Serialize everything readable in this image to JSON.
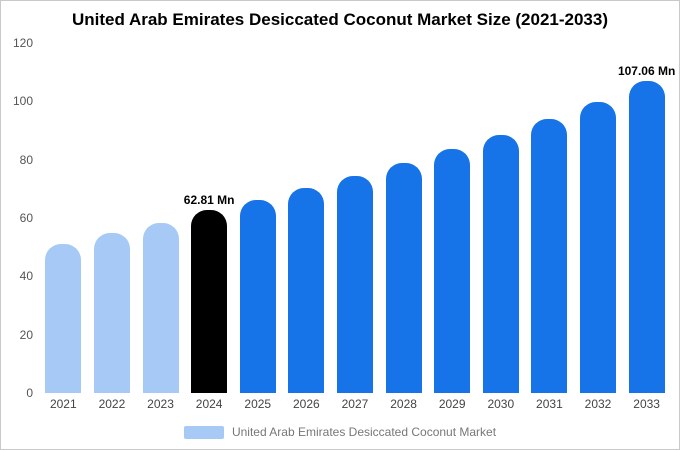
{
  "title": "United Arab Emirates Desiccated Coconut Market Size (2021-2033)",
  "legend": {
    "label": "United Arab Emirates Desiccated Coconut Market",
    "swatch_color": "#a6c9f6"
  },
  "colors": {
    "light_blue": "#a6c9f6",
    "highlight_black": "#000000",
    "primary_blue": "#1673e8"
  },
  "chart_data": {
    "type": "bar",
    "title": "United Arab Emirates Desiccated Coconut Market Size (2021-2033)",
    "xlabel": "",
    "ylabel": "",
    "categories": [
      "2021",
      "2022",
      "2023",
      "2024",
      "2025",
      "2026",
      "2027",
      "2028",
      "2029",
      "2030",
      "2031",
      "2032",
      "2033"
    ],
    "values": [
      51.2,
      54.8,
      58.3,
      62.81,
      66.3,
      70.2,
      74.4,
      78.9,
      83.6,
      88.6,
      93.9,
      99.8,
      107.06
    ],
    "bar_colors": [
      "#a6c9f6",
      "#a6c9f6",
      "#a6c9f6",
      "#000000",
      "#1673e8",
      "#1673e8",
      "#1673e8",
      "#1673e8",
      "#1673e8",
      "#1673e8",
      "#1673e8",
      "#1673e8",
      "#1673e8"
    ],
    "annotations": [
      {
        "index": 3,
        "text": "62.81 Mn"
      },
      {
        "index": 12,
        "text": "107.06 Mn"
      }
    ],
    "ylim": [
      0,
      120
    ],
    "yticks": [
      0,
      20,
      40,
      60,
      80,
      100,
      120
    ],
    "grid": false,
    "legend_position": "bottom",
    "legend_entries": [
      "United Arab Emirates Desiccated Coconut Market"
    ]
  }
}
